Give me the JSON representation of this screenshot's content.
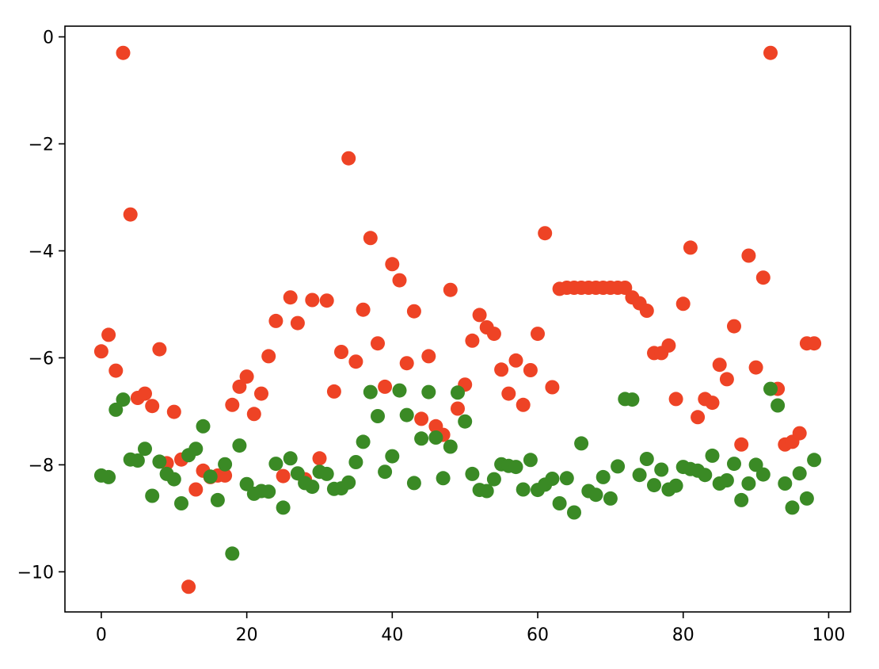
{
  "chart_data": {
    "type": "scatter",
    "title": "",
    "xlabel": "",
    "ylabel": "",
    "xlim": [
      -5,
      103
    ],
    "ylim": [
      -10.75,
      0.2
    ],
    "x_ticks": [
      0,
      20,
      40,
      60,
      80,
      100
    ],
    "y_ticks": [
      0,
      -2,
      -4,
      -6,
      -8,
      -10
    ],
    "x_tick_labels": [
      "0",
      "20",
      "40",
      "60",
      "80",
      "100"
    ],
    "y_tick_labels": [
      "0",
      "−2",
      "−4",
      "−6",
      "−8",
      "−10"
    ],
    "grid": false,
    "legend": "none",
    "series": [
      {
        "color": "#ee4325",
        "x": [
          0,
          1,
          2,
          3,
          4,
          5,
          6,
          7,
          8,
          9,
          10,
          11,
          12,
          13,
          14,
          15,
          16,
          17,
          18,
          19,
          20,
          21,
          22,
          23,
          24,
          25,
          26,
          27,
          28,
          29,
          30,
          31,
          32,
          33,
          34,
          35,
          36,
          37,
          38,
          39,
          40,
          41,
          42,
          43,
          44,
          45,
          46,
          47,
          48,
          49,
          50,
          51,
          52,
          53,
          54,
          55,
          56,
          57,
          58,
          59,
          60,
          61,
          62,
          63,
          64,
          65,
          66,
          67,
          68,
          69,
          70,
          71,
          72,
          73,
          74,
          75,
          76,
          77,
          78,
          79,
          80,
          81,
          82,
          83,
          84,
          85,
          86,
          87,
          88,
          89,
          90,
          91,
          92,
          93,
          94,
          95,
          96,
          97,
          98
        ],
        "y": [
          -5.88,
          -5.57,
          -6.24,
          -0.3,
          -3.32,
          -6.75,
          -6.67,
          -6.9,
          -5.84,
          -7.97,
          -7.01,
          -7.9,
          -10.28,
          -8.46,
          -8.11,
          -8.23,
          -8.2,
          -8.2,
          -6.88,
          -6.54,
          -6.35,
          -7.05,
          -6.67,
          -5.97,
          -5.31,
          -8.21,
          -4.87,
          -5.35,
          -8.27,
          -4.92,
          -7.88,
          -4.93,
          -6.63,
          -5.89,
          -2.27,
          -6.07,
          -5.1,
          -3.76,
          -5.73,
          -6.54,
          -4.25,
          -4.55,
          -6.1,
          -5.13,
          -7.14,
          -5.97,
          -7.28,
          -7.44,
          -4.73,
          -6.95,
          -6.5,
          -5.68,
          -5.2,
          -5.43,
          -5.55,
          -6.22,
          -6.67,
          -6.05,
          -6.88,
          -6.23,
          -5.55,
          -3.67,
          -6.55,
          -4.71,
          -4.69,
          -4.69,
          -4.69,
          -4.69,
          -4.69,
          -4.69,
          -4.69,
          -4.69,
          -4.69,
          -4.87,
          -4.98,
          -5.12,
          -5.91,
          -5.91,
          -5.77,
          -6.77,
          -4.99,
          -3.94,
          -7.11,
          -6.77,
          -6.84,
          -6.13,
          -6.4,
          -5.41,
          -7.62,
          -4.09,
          -6.18,
          -4.5,
          -0.3,
          -6.58,
          -7.62,
          -7.57,
          -7.41,
          -5.73,
          -5.73
        ]
      },
      {
        "color": "#3a8a25",
        "x": [
          0,
          1,
          2,
          3,
          4,
          5,
          6,
          7,
          8,
          9,
          10,
          11,
          12,
          13,
          14,
          15,
          16,
          17,
          18,
          19,
          20,
          21,
          22,
          23,
          24,
          25,
          26,
          27,
          28,
          29,
          30,
          31,
          32,
          33,
          34,
          35,
          36,
          37,
          38,
          39,
          40,
          41,
          42,
          43,
          44,
          45,
          46,
          47,
          48,
          49,
          50,
          51,
          52,
          53,
          54,
          55,
          56,
          57,
          58,
          59,
          60,
          61,
          62,
          63,
          64,
          65,
          66,
          67,
          68,
          69,
          70,
          71,
          72,
          73,
          74,
          75,
          76,
          77,
          78,
          79,
          80,
          81,
          82,
          83,
          84,
          85,
          86,
          87,
          88,
          89,
          90,
          91,
          92,
          93,
          94,
          95,
          96,
          97,
          98
        ],
        "y": [
          -8.2,
          -8.23,
          -6.97,
          -6.78,
          -7.9,
          -7.92,
          -7.7,
          -8.58,
          -7.94,
          -8.17,
          -8.27,
          -8.72,
          -7.82,
          -7.7,
          -7.28,
          -8.22,
          -8.66,
          -7.99,
          -9.66,
          -7.64,
          -8.36,
          -8.54,
          -8.49,
          -8.5,
          -7.98,
          -8.8,
          -7.88,
          -8.16,
          -8.34,
          -8.41,
          -8.13,
          -8.17,
          -8.45,
          -8.44,
          -8.33,
          -7.95,
          -7.57,
          -6.64,
          -7.09,
          -8.13,
          -7.84,
          -6.61,
          -7.07,
          -8.34,
          -7.51,
          -6.64,
          -7.49,
          -8.25,
          -7.66,
          -6.65,
          -7.19,
          -8.17,
          -8.47,
          -8.49,
          -8.27,
          -7.99,
          -8.02,
          -8.04,
          -8.46,
          -7.91,
          -8.47,
          -8.37,
          -8.26,
          -8.72,
          -8.25,
          -8.89,
          -7.6,
          -8.49,
          -8.56,
          -8.23,
          -8.63,
          -8.03,
          -6.77,
          -6.78,
          -8.19,
          -7.89,
          -8.38,
          -8.09,
          -8.46,
          -8.39,
          -8.04,
          -8.08,
          -8.11,
          -8.19,
          -7.83,
          -8.35,
          -8.29,
          -7.98,
          -8.66,
          -8.35,
          -8.0,
          -8.18,
          -6.58,
          -6.89,
          -8.35,
          -8.8,
          -8.16,
          -8.63,
          -7.91
        ]
      }
    ]
  }
}
